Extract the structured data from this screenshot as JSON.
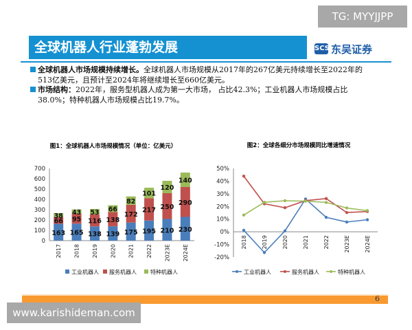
{
  "slide": {
    "title": "全球机器人行业蓬勃发展",
    "logo_text": "东吴证券",
    "logo_mark": "SCS",
    "bullets": [
      {
        "bold": "全球机器人市场规模持续增长。",
        "line1": "全球机器人市场规模从2017年的267亿美元持续增长至2022年的",
        "line2": "513亿美元，且预计至2024年将继续增长至660亿美元。"
      },
      {
        "bold": "市场结构：",
        "line1": "2022年，服务型机器人成为第一大市场， 占比42.3%；工业机器人市场规模占比",
        "line2": "38.0%；特种机器人市场规模占比19.7%。"
      }
    ],
    "page_number": "6",
    "watermark_top": "TG: MYYJJPP",
    "watermark_bottom": "www.karishideman.com"
  },
  "chart_data": [
    {
      "type": "bar",
      "stacked": true,
      "title": "图1：全球机器人市场规模情况（单位：亿美元）",
      "categories": [
        "2017",
        "2018",
        "2019",
        "2020",
        "2021",
        "2022",
        "2023E",
        "2024E"
      ],
      "series": [
        {
          "name": "工业机器人",
          "color": "#4a7ebb",
          "values": [
            163,
            165,
            138,
            139,
            175,
            195,
            210,
            230
          ]
        },
        {
          "name": "服务机器人",
          "color": "#c0504d",
          "values": [
            66,
            95,
            116,
            138,
            172,
            217,
            250,
            290
          ]
        },
        {
          "name": "特种机器人",
          "color": "#9bbb59",
          "values": [
            38,
            43,
            53,
            66,
            82,
            101,
            120,
            140
          ]
        }
      ],
      "ylim": [
        0,
        700
      ],
      "yticks": [
        0,
        100,
        200,
        300,
        400,
        500,
        600,
        700
      ],
      "legend": "bottom",
      "grid": false
    },
    {
      "type": "line",
      "title": "图2：全球各细分市场规模同比增速情况",
      "categories": [
        "2018",
        "2019",
        "2020",
        "2021",
        "2022",
        "2023E",
        "2024E"
      ],
      "series": [
        {
          "name": "工业机器人",
          "color": "#4a7ebb",
          "values": [
            1.2,
            -16.4,
            0.7,
            25.9,
            11.4,
            7.7,
            9.5
          ]
        },
        {
          "name": "服务机器人",
          "color": "#c0504d",
          "values": [
            43.9,
            22.1,
            19.0,
            24.6,
            26.2,
            15.2,
            16.0
          ]
        },
        {
          "name": "特种机器人",
          "color": "#9bbb59",
          "values": [
            13.2,
            23.3,
            24.5,
            24.2,
            23.2,
            18.8,
            16.7
          ]
        }
      ],
      "ylim": [
        -20,
        50
      ],
      "yticks": [
        "-20%",
        "-10%",
        "0%",
        "10%",
        "20%",
        "30%",
        "40%",
        "50%"
      ],
      "legend": "bottom",
      "grid": false
    }
  ]
}
